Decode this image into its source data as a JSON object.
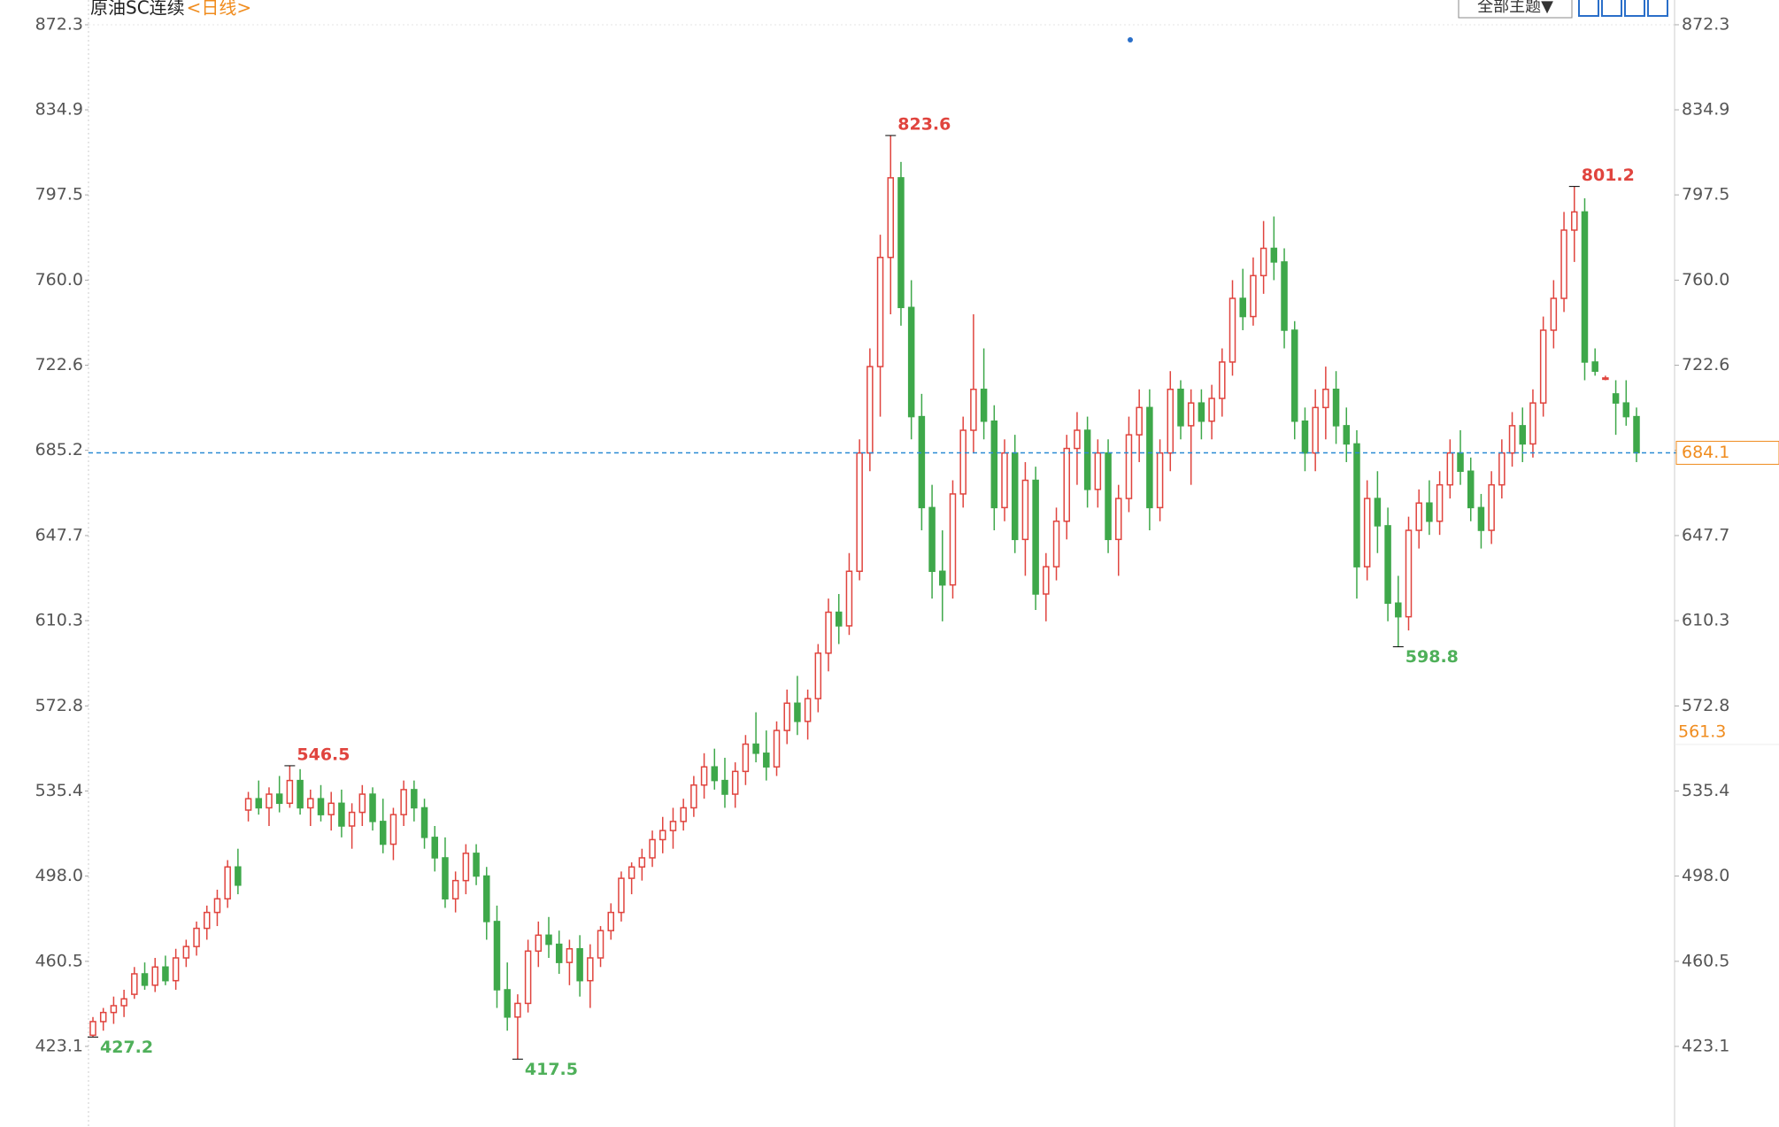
{
  "chart_data": {
    "type": "candlestick",
    "title": "原油SC连续",
    "period": "<日线>",
    "theme_button": "全部主题▼",
    "ylim": [
      389.6,
      875.4
    ],
    "yticks": [
      423.1,
      460.5,
      {
        "value": 498,
        "label": "498.0"
      },
      535.4,
      572.8,
      610.3,
      647.7,
      685.2,
      722.6,
      {
        "value": 760,
        "label": "760.0"
      },
      797.5,
      834.9,
      872.3
    ],
    "grid": false,
    "up_color": "#e0443e",
    "down_color": "#3ea84a",
    "last_price": 684.1,
    "last_price_color": "#f08c1e",
    "marker_price": 561.3,
    "high_labels": [
      546.5,
      823.6,
      801.2
    ],
    "low_labels": [
      427.2,
      417.5,
      598.8
    ],
    "ohlc": [
      [
        428,
        436,
        427.2,
        434
      ],
      [
        434,
        440,
        430,
        438
      ],
      [
        438,
        445,
        433,
        441
      ],
      [
        441,
        448,
        436,
        444
      ],
      [
        446,
        458,
        444,
        455
      ],
      [
        455,
        460,
        448,
        450
      ],
      [
        450,
        462,
        447,
        458
      ],
      [
        458,
        463,
        450,
        452
      ],
      [
        452,
        466,
        448,
        462
      ],
      [
        462,
        470,
        458,
        467
      ],
      [
        467,
        478,
        463,
        475
      ],
      [
        475,
        485,
        470,
        482
      ],
      [
        482,
        492,
        476,
        488
      ],
      [
        488,
        505,
        484,
        502
      ],
      [
        502,
        510,
        490,
        494
      ],
      [
        527,
        535,
        522,
        532
      ],
      [
        532,
        540,
        525,
        528
      ],
      [
        528,
        537,
        520,
        534
      ],
      [
        534,
        542,
        526,
        530
      ],
      [
        530,
        546.5,
        528,
        540
      ],
      [
        540,
        545,
        525,
        528
      ],
      [
        528,
        536,
        520,
        532
      ],
      [
        532,
        538,
        522,
        525
      ],
      [
        525,
        535,
        518,
        530
      ],
      [
        530,
        536,
        515,
        520
      ],
      [
        520,
        530,
        510,
        526
      ],
      [
        526,
        538,
        520,
        534
      ],
      [
        534,
        537,
        518,
        522
      ],
      [
        522,
        532,
        508,
        512
      ],
      [
        512,
        528,
        505,
        525
      ],
      [
        525,
        540,
        520,
        536
      ],
      [
        536,
        540,
        522,
        528
      ],
      [
        528,
        532,
        510,
        515
      ],
      [
        515,
        520,
        500,
        506
      ],
      [
        506,
        515,
        484,
        488
      ],
      [
        488,
        500,
        482,
        496
      ],
      [
        496,
        512,
        490,
        508
      ],
      [
        508,
        512,
        494,
        498
      ],
      [
        498,
        502,
        470,
        478
      ],
      [
        478,
        485,
        440,
        448
      ],
      [
        448,
        460,
        430,
        436
      ],
      [
        436,
        446,
        417.5,
        442
      ],
      [
        442,
        470,
        438,
        465
      ],
      [
        465,
        478,
        458,
        472
      ],
      [
        472,
        480,
        462,
        468
      ],
      [
        468,
        474,
        455,
        460
      ],
      [
        460,
        470,
        450,
        466
      ],
      [
        466,
        472,
        445,
        452
      ],
      [
        452,
        468,
        440,
        462
      ],
      [
        462,
        476,
        458,
        474
      ],
      [
        474,
        486,
        470,
        482
      ],
      [
        482,
        500,
        478,
        497
      ],
      [
        497,
        504,
        490,
        502
      ],
      [
        502,
        510,
        496,
        506
      ],
      [
        506,
        518,
        502,
        514
      ],
      [
        514,
        524,
        508,
        518
      ],
      [
        518,
        528,
        510,
        522
      ],
      [
        522,
        532,
        518,
        528
      ],
      [
        528,
        542,
        524,
        538
      ],
      [
        538,
        552,
        532,
        546
      ],
      [
        546,
        554,
        536,
        540
      ],
      [
        540,
        550,
        528,
        534
      ],
      [
        534,
        548,
        528,
        544
      ],
      [
        544,
        560,
        538,
        556
      ],
      [
        556,
        570,
        548,
        552
      ],
      [
        552,
        562,
        540,
        546
      ],
      [
        546,
        566,
        542,
        562
      ],
      [
        562,
        580,
        556,
        574
      ],
      [
        574,
        586,
        560,
        566
      ],
      [
        566,
        580,
        558,
        576
      ],
      [
        576,
        600,
        570,
        596
      ],
      [
        596,
        620,
        588,
        614
      ],
      [
        614,
        622,
        600,
        608
      ],
      [
        608,
        640,
        604,
        632
      ],
      [
        632,
        690,
        628,
        684
      ],
      [
        684,
        730,
        676,
        722
      ],
      [
        722,
        780,
        700,
        770
      ],
      [
        770,
        823.6,
        745,
        805
      ],
      [
        805,
        812,
        740,
        748
      ],
      [
        748,
        760,
        690,
        700
      ],
      [
        700,
        710,
        650,
        660
      ],
      [
        660,
        670,
        620,
        632
      ],
      [
        632,
        650,
        610,
        626
      ],
      [
        626,
        672,
        620,
        666
      ],
      [
        666,
        700,
        660,
        694
      ],
      [
        694,
        745,
        684,
        712
      ],
      [
        712,
        730,
        690,
        698
      ],
      [
        698,
        705,
        650,
        660
      ],
      [
        660,
        690,
        654,
        684
      ],
      [
        684,
        692,
        640,
        646
      ],
      [
        646,
        680,
        630,
        672
      ],
      [
        672,
        678,
        615,
        622
      ],
      [
        622,
        640,
        610,
        634
      ],
      [
        634,
        660,
        628,
        654
      ],
      [
        654,
        692,
        646,
        686
      ],
      [
        686,
        702,
        670,
        694
      ],
      [
        694,
        700,
        660,
        668
      ],
      [
        668,
        690,
        660,
        684
      ],
      [
        684,
        690,
        640,
        646
      ],
      [
        646,
        670,
        630,
        664
      ],
      [
        664,
        700,
        658,
        692
      ],
      [
        692,
        712,
        680,
        704
      ],
      [
        704,
        712,
        650,
        660
      ],
      [
        660,
        690,
        654,
        684
      ],
      [
        684,
        720,
        676,
        712
      ],
      [
        712,
        716,
        690,
        696
      ],
      [
        696,
        712,
        670,
        706
      ],
      [
        706,
        712,
        690,
        698
      ],
      [
        698,
        714,
        690,
        708
      ],
      [
        708,
        730,
        700,
        724
      ],
      [
        724,
        760,
        718,
        752
      ],
      [
        752,
        765,
        738,
        744
      ],
      [
        744,
        770,
        740,
        762
      ],
      [
        762,
        786,
        754,
        774
      ],
      [
        774,
        788,
        760,
        768
      ],
      [
        768,
        774,
        730,
        738
      ],
      [
        738,
        742,
        690,
        698
      ],
      [
        698,
        704,
        676,
        684
      ],
      [
        684,
        712,
        676,
        704
      ],
      [
        704,
        722,
        690,
        712
      ],
      [
        712,
        720,
        688,
        696
      ],
      [
        696,
        704,
        680,
        688
      ],
      [
        688,
        694,
        620,
        634
      ],
      [
        634,
        672,
        628,
        664
      ],
      [
        664,
        676,
        640,
        652
      ],
      [
        652,
        660,
        610,
        618
      ],
      [
        618,
        630,
        598.8,
        612
      ],
      [
        612,
        656,
        606,
        650
      ],
      [
        650,
        668,
        642,
        662
      ],
      [
        662,
        672,
        648,
        654
      ],
      [
        654,
        676,
        648,
        670
      ],
      [
        670,
        690,
        664,
        684
      ],
      [
        684,
        694,
        670,
        676
      ],
      [
        676,
        682,
        654,
        660
      ],
      [
        660,
        666,
        642,
        650
      ],
      [
        650,
        676,
        644,
        670
      ],
      [
        670,
        690,
        664,
        684
      ],
      [
        684,
        702,
        678,
        696
      ],
      [
        696,
        704,
        680,
        688
      ],
      [
        688,
        712,
        682,
        706
      ],
      [
        706,
        744,
        700,
        738
      ],
      [
        738,
        760,
        730,
        752
      ],
      [
        752,
        790,
        746,
        782
      ],
      [
        782,
        801.2,
        768,
        790
      ],
      [
        790,
        796,
        716,
        724
      ],
      [
        724,
        730,
        718,
        720
      ],
      [
        717,
        718,
        716,
        717
      ],
      [
        710,
        716,
        692,
        706
      ],
      [
        706,
        716,
        696,
        700
      ],
      [
        700,
        704,
        680,
        684.1
      ]
    ]
  }
}
